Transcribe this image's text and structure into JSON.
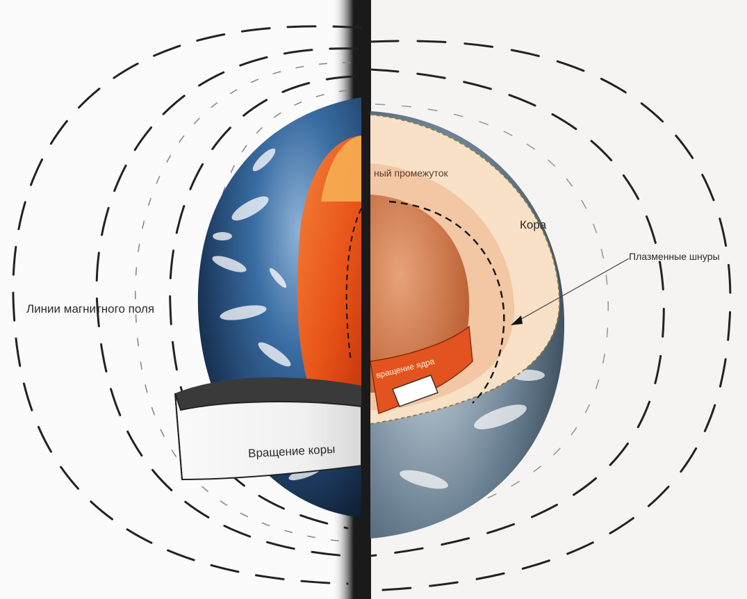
{
  "labels": {
    "field_lines": "Линии магнитного поля",
    "crust_rotation": "Вращение коры",
    "gap": "ный промежуток",
    "crust": "Кора",
    "plasma_cords": "Плазменные шнуры",
    "core_rotation": "вращение ядра"
  },
  "colors": {
    "page_left": "#fbfbfb",
    "page_right": "#f4f1f1",
    "gutter": "#1c1c1c",
    "field_line": "#222222",
    "ocean": "#2f5f93",
    "mantle": "#ea5a1c",
    "core": "#d06a33",
    "crust_shell": "#f6dec5"
  }
}
